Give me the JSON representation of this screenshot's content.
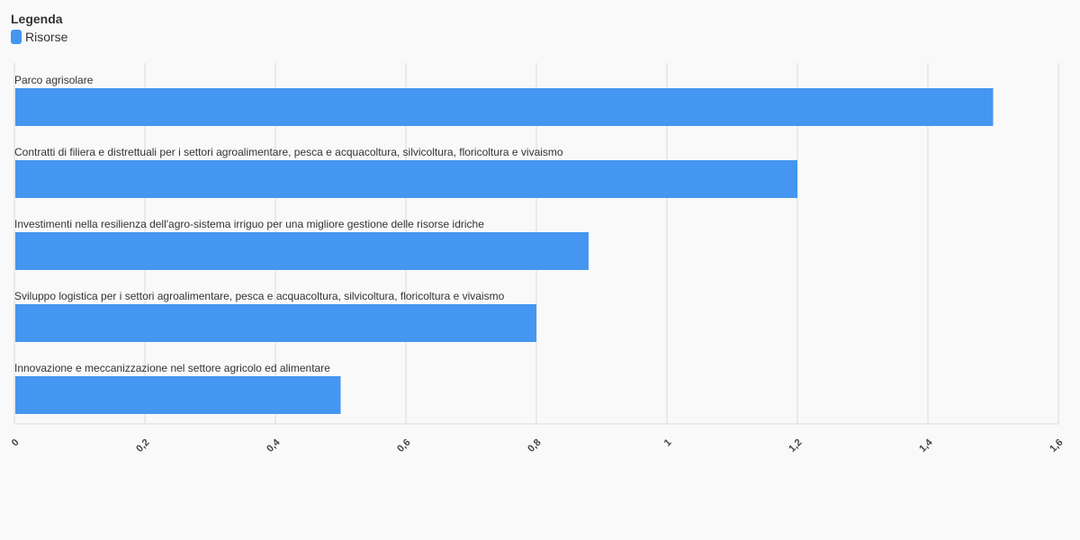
{
  "legend": {
    "title": "Legenda",
    "items": [
      {
        "label": "Risorse",
        "color": "#4496f0"
      }
    ]
  },
  "chart_data": {
    "type": "bar",
    "orientation": "horizontal",
    "categories": [
      "Parco agrisolare",
      "Contratti di filiera e distrettuali per i settori agroalimentare, pesca e acquacoltura, silvicoltura, floricoltura e vivaismo",
      "Investimenti nella resilienza dell'agro-sistema irriguo per una migliore gestione delle risorse idriche",
      "Sviluppo logistica per i settori agroalimentare, pesca e acquacoltura, silvicoltura, floricoltura e vivaismo",
      "Innovazione e meccanizzazione nel settore agricolo ed alimentare"
    ],
    "series": [
      {
        "name": "Risorse",
        "values": [
          1.5,
          1.2,
          0.88,
          0.8,
          0.5
        ]
      }
    ],
    "xlim": [
      0,
      1.6
    ],
    "x_ticks": [
      0,
      0.2,
      0.4,
      0.6,
      0.8,
      1,
      1.2,
      1.4,
      1.6
    ],
    "x_tick_labels": [
      "0",
      "0,2",
      "0,4",
      "0,6",
      "0,8",
      "1",
      "1,2",
      "1,4",
      "1,6"
    ],
    "grid": true,
    "legend_position": "top-left",
    "bar_color": "#4496f0",
    "grid_color": "#e6e6e6",
    "title": "",
    "xlabel": "",
    "ylabel": ""
  }
}
